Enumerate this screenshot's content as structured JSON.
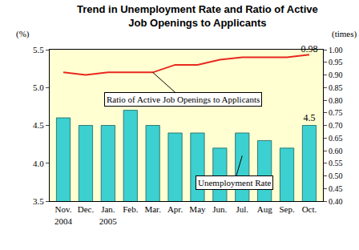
{
  "chart_data": {
    "type": "bar",
    "title": "Trend in Unemployment Rate and Ratio of Active\nJob Openings to Applicants",
    "ylabel": "(%)",
    "y2label": "(times)",
    "categories": [
      "Nov.",
      "Dec.",
      "Jan.",
      "Feb.",
      "Mar.",
      "Apr.",
      "May",
      "Jun.",
      "Jul.",
      "Aug",
      "Sep.",
      "Oct."
    ],
    "annotations": [
      {
        "text": "2004",
        "category": "Nov."
      },
      {
        "text": "2005",
        "category": "Jan."
      }
    ],
    "series": [
      {
        "name": "Unemployment Rate",
        "type": "bar",
        "color": "#3cd0d0",
        "values": [
          4.6,
          4.5,
          4.5,
          4.7,
          4.5,
          4.4,
          4.4,
          4.2,
          4.4,
          4.3,
          4.2,
          4.5
        ],
        "value_labels": [
          null,
          null,
          null,
          null,
          null,
          null,
          null,
          null,
          null,
          null,
          null,
          "4.5"
        ]
      },
      {
        "name": "Ratio of Active Job Openings to Applicants",
        "type": "line",
        "color": "#e8281e",
        "axis": "y2",
        "values": [
          0.91,
          0.9,
          0.91,
          0.91,
          0.91,
          0.94,
          0.94,
          0.96,
          0.97,
          0.97,
          0.97,
          0.98
        ],
        "value_labels": [
          null,
          null,
          null,
          null,
          null,
          null,
          null,
          null,
          null,
          null,
          null,
          "0.98"
        ]
      }
    ],
    "ylim": [
      3.5,
      5.5
    ],
    "yticks": [
      3.5,
      {
        "value": 4,
        "label": "4.0"
      },
      4.5,
      {
        "value": 5,
        "label": "5.0"
      },
      5.5
    ],
    "y2lim": [
      0.4,
      1.0
    ],
    "y2ticks": [
      {
        "value": 0.4,
        "label": "0.40"
      },
      0.45,
      {
        "value": 0.5,
        "label": "0.50"
      },
      0.55,
      {
        "value": 0.6,
        "label": "0.60"
      },
      0.65,
      {
        "value": 0.7,
        "label": "0.70"
      },
      0.75,
      {
        "value": 0.8,
        "label": "0.80"
      },
      0.85,
      {
        "value": 0.9,
        "label": "0.90"
      },
      0.95,
      {
        "value": 1.0,
        "label": "1.00"
      }
    ],
    "grid": false,
    "data_labels": true
  }
}
